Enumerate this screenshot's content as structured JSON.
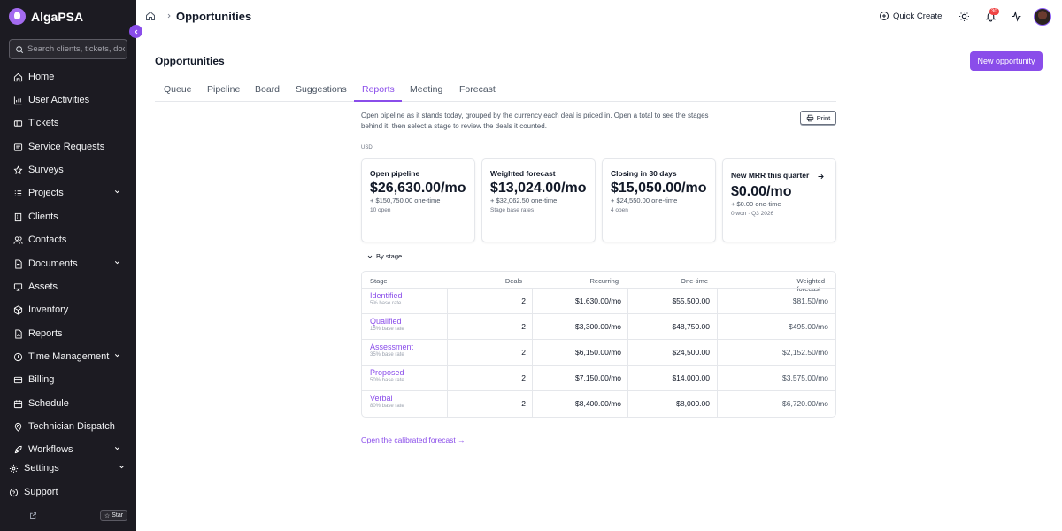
{
  "app": {
    "name": "AlgaPSA"
  },
  "sidebar": {
    "search_placeholder": "Search clients, tickets, doc",
    "items": [
      {
        "label": "Home",
        "icon": "home-icon"
      },
      {
        "label": "User Activities",
        "icon": "chart-icon"
      },
      {
        "label": "Tickets",
        "icon": "ticket-icon"
      },
      {
        "label": "Service Requests",
        "icon": "request-icon"
      },
      {
        "label": "Surveys",
        "icon": "star-icon"
      },
      {
        "label": "Projects",
        "icon": "list-icon",
        "expandable": true
      },
      {
        "label": "Clients",
        "icon": "building-icon"
      },
      {
        "label": "Contacts",
        "icon": "users-icon"
      },
      {
        "label": "Documents",
        "icon": "document-icon",
        "expandable": true
      },
      {
        "label": "Assets",
        "icon": "monitor-icon"
      },
      {
        "label": "Inventory",
        "icon": "box-icon"
      },
      {
        "label": "Reports",
        "icon": "report-icon"
      },
      {
        "label": "Time Management",
        "icon": "clock-icon",
        "expandable": true
      },
      {
        "label": "Billing",
        "icon": "card-icon"
      },
      {
        "label": "Schedule",
        "icon": "calendar-icon"
      },
      {
        "label": "Technician Dispatch",
        "icon": "pin-icon"
      },
      {
        "label": "Workflows",
        "icon": "rocket-icon",
        "expandable": true
      }
    ],
    "settings_label": "Settings",
    "support_label": "Support",
    "star_label": "Star"
  },
  "topbar": {
    "breadcrumb_title": "Opportunities",
    "quick_create_label": "Quick Create",
    "notification_count": "30"
  },
  "page": {
    "title": "Opportunities",
    "new_button_label": "New opportunity",
    "tabs": [
      "Queue",
      "Pipeline",
      "Board",
      "Suggestions",
      "Reports",
      "Meeting",
      "Forecast"
    ],
    "active_tab": "Reports",
    "intro": "Open pipeline as it stands today, grouped by the currency each deal is priced in. Open a total to see the stages behind it, then select a stage to review the deals it counted.",
    "print_label": "Print",
    "currency": "USD"
  },
  "cards": [
    {
      "title": "Open pipeline",
      "value": "$26,630.00/mo",
      "sub": "+ $150,750.00 one-time",
      "note": "10 open"
    },
    {
      "title": "Weighted forecast",
      "value": "$13,024.00/mo",
      "sub": "+ $32,062.50 one-time",
      "note": "Stage base rates"
    },
    {
      "title": "Closing in 30 days",
      "value": "$15,050.00/mo",
      "sub": "+ $24,550.00 one-time",
      "note": "4 open"
    },
    {
      "title": "New MRR this quarter",
      "value": "$0.00/mo",
      "sub": "+ $0.00 one-time",
      "note": "0 won · Q3 2026"
    }
  ],
  "by_stage": {
    "label": "By stage",
    "headers": {
      "stage": "Stage",
      "deals": "Deals",
      "recurring": "Recurring",
      "one_time": "One-time",
      "weighted": "Weighted forecast"
    },
    "rows": [
      {
        "stage": "Identified",
        "rate": "5% base rate",
        "deals": "2",
        "recurring": "$1,630.00/mo",
        "one_time": "$55,500.00",
        "weighted": "$81.50/mo"
      },
      {
        "stage": "Qualified",
        "rate": "15% base rate",
        "deals": "2",
        "recurring": "$3,300.00/mo",
        "one_time": "$48,750.00",
        "weighted": "$495.00/mo"
      },
      {
        "stage": "Assessment",
        "rate": "35% base rate",
        "deals": "2",
        "recurring": "$6,150.00/mo",
        "one_time": "$24,500.00",
        "weighted": "$2,152.50/mo"
      },
      {
        "stage": "Proposed",
        "rate": "50% base rate",
        "deals": "2",
        "recurring": "$7,150.00/mo",
        "one_time": "$14,000.00",
        "weighted": "$3,575.00/mo"
      },
      {
        "stage": "Verbal",
        "rate": "80% base rate",
        "deals": "2",
        "recurring": "$8,400.00/mo",
        "one_time": "$8,000.00",
        "weighted": "$6,720.00/mo"
      }
    ]
  },
  "footer_link": "Open the calibrated forecast →",
  "colors": {
    "accent": "#8a4dea",
    "sidebar_bg": "#1c1b22",
    "badge": "#ef4444"
  }
}
